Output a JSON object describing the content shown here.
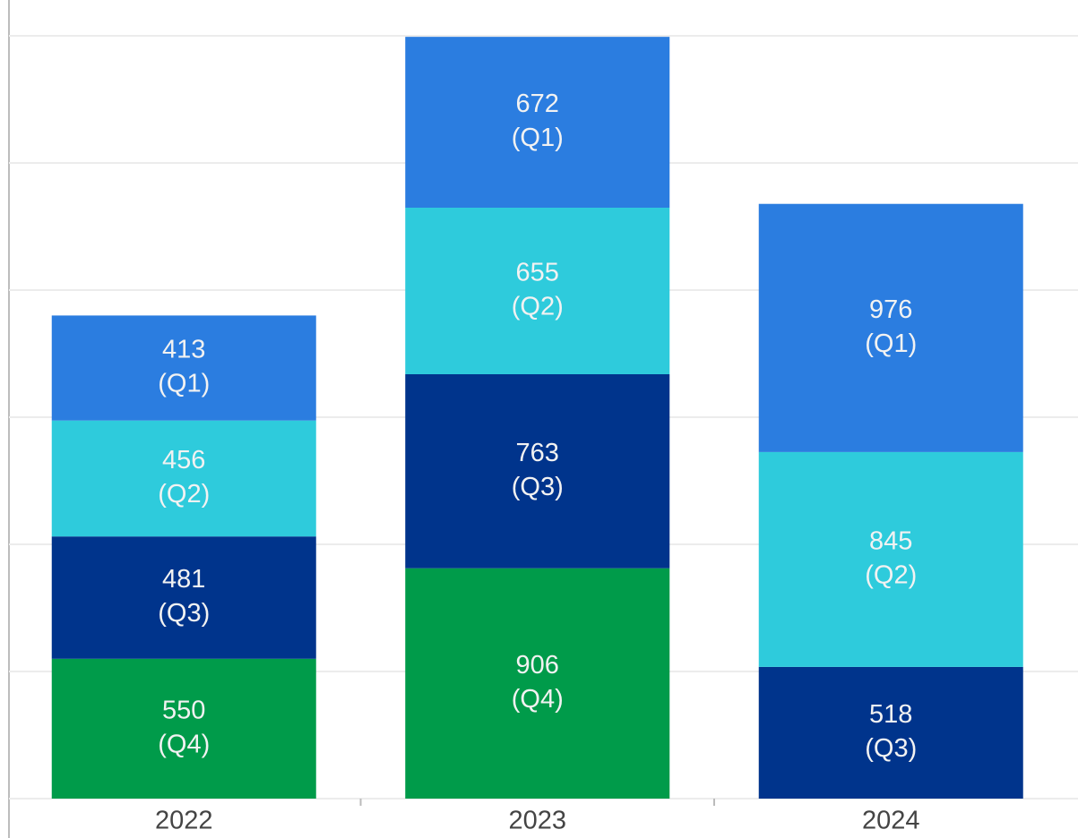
{
  "chart_data": {
    "type": "bar",
    "stacked": true,
    "categories": [
      "2022",
      "2023",
      "2024"
    ],
    "series": [
      {
        "name": "(Q4)",
        "color": "#009b4a",
        "values": [
          550,
          906,
          null
        ]
      },
      {
        "name": "(Q3)",
        "color": "#00348c",
        "values": [
          481,
          763,
          518
        ]
      },
      {
        "name": "(Q2)",
        "color": "#2ecbdc",
        "values": [
          456,
          655,
          845
        ]
      },
      {
        "name": "(Q1)",
        "color": "#2b7de0",
        "values": [
          413,
          672,
          976
        ]
      }
    ],
    "ylim": [
      0,
      3000
    ],
    "yticks": [
      0,
      500,
      1000,
      1500,
      2000,
      2500,
      3000
    ],
    "grid": true,
    "show_ytick_labels": false
  }
}
